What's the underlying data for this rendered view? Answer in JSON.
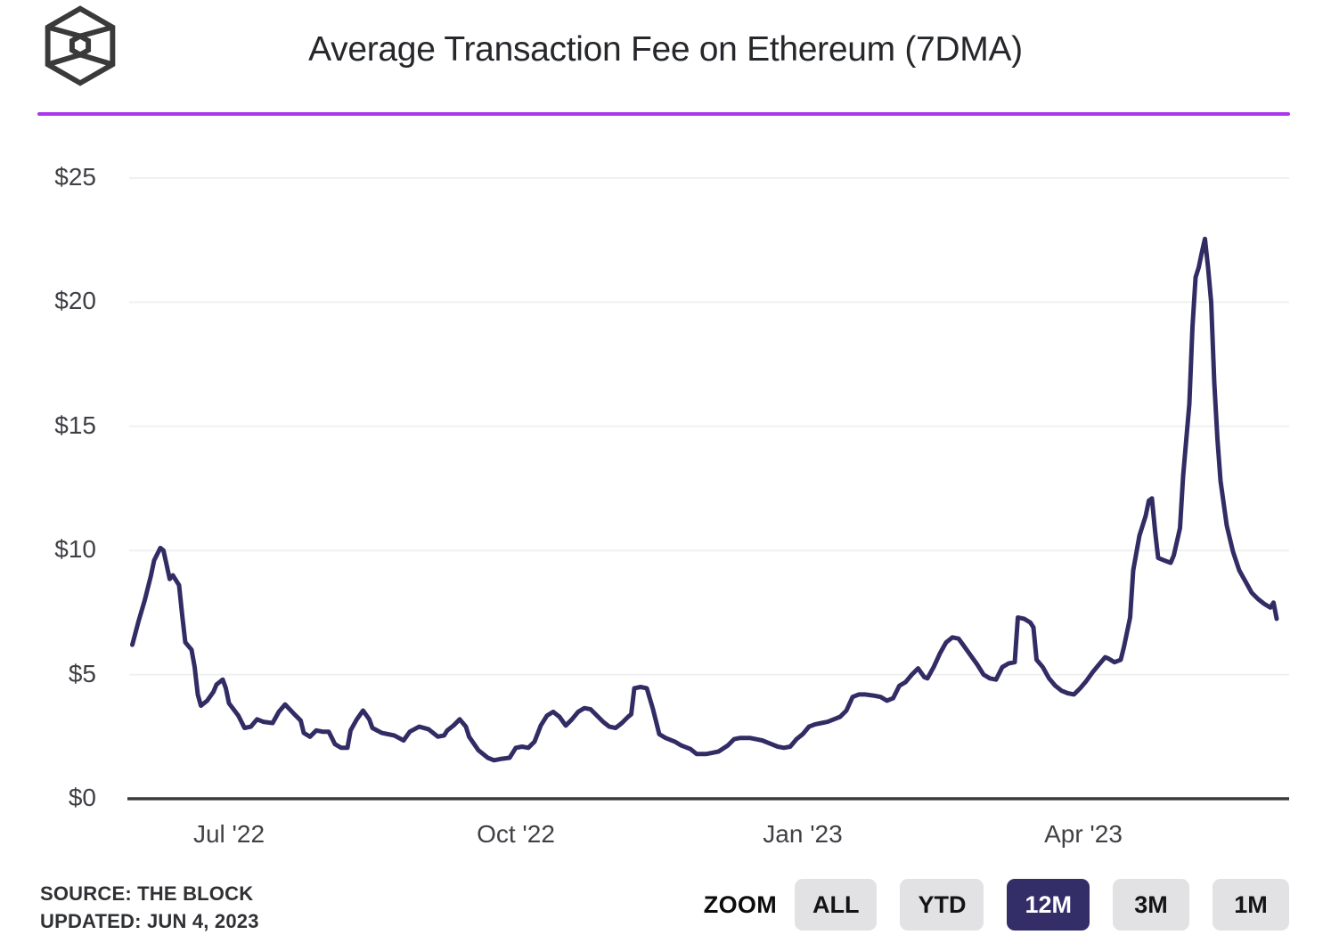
{
  "header": {
    "title": "Average Transaction Fee on Ethereum (7DMA)",
    "logo": "the-block-cube-logo"
  },
  "colors": {
    "divider_purple": "#A838EA",
    "line_indigo": "#322C64",
    "active_button_bg": "#342E68",
    "inactive_button_bg": "#E2E2E4",
    "gridline": "#F0F0F1",
    "zero_axis": "#3A3A3C"
  },
  "footer": {
    "source_line1": "SOURCE: THE BLOCK",
    "source_line2": "UPDATED: JUN 4, 2023",
    "zoom": {
      "label": "ZOOM",
      "buttons": [
        {
          "label": "ALL",
          "active": false
        },
        {
          "label": "YTD",
          "active": false
        },
        {
          "label": "12M",
          "active": true
        },
        {
          "label": "3M",
          "active": false
        },
        {
          "label": "1M",
          "active": false
        }
      ]
    }
  },
  "chart_data": {
    "type": "line",
    "title": "Average Transaction Fee on Ethereum (7DMA)",
    "unit": "USD",
    "ylim": [
      0,
      25
    ],
    "y_tick_values": [
      25,
      20,
      15,
      10,
      5,
      0
    ],
    "y_tick_labels": [
      "$25",
      "$20",
      "$15",
      "$10",
      "$5",
      "$0"
    ],
    "x_range": [
      "2022-05-30",
      "2023-06-06"
    ],
    "x_ticks": [
      {
        "label": "Jul '22",
        "date": "2022-07-01"
      },
      {
        "label": "Oct '22",
        "date": "2022-10-01"
      },
      {
        "label": "Jan '23",
        "date": "2023-01-01"
      },
      {
        "label": "Apr '23",
        "date": "2023-04-01"
      }
    ],
    "grid": true,
    "legend": false,
    "series": [
      {
        "name": "Average transaction fee (7DMA)",
        "color": "#322C64",
        "points": [
          [
            "2022-05-31",
            6.2
          ],
          [
            "2022-06-02",
            7.15
          ],
          [
            "2022-06-04",
            8.0
          ],
          [
            "2022-06-06",
            9.0
          ],
          [
            "2022-06-07",
            9.6
          ],
          [
            "2022-06-09",
            10.1
          ],
          [
            "2022-06-10",
            10.0
          ],
          [
            "2022-06-12",
            8.85
          ],
          [
            "2022-06-13",
            9.0
          ],
          [
            "2022-06-15",
            8.6
          ],
          [
            "2022-06-16",
            7.4
          ],
          [
            "2022-06-17",
            6.3
          ],
          [
            "2022-06-19",
            6.0
          ],
          [
            "2022-06-20",
            5.3
          ],
          [
            "2022-06-21",
            4.2
          ],
          [
            "2022-06-22",
            3.75
          ],
          [
            "2022-06-24",
            3.95
          ],
          [
            "2022-06-26",
            4.3
          ],
          [
            "2022-06-27",
            4.6
          ],
          [
            "2022-06-29",
            4.8
          ],
          [
            "2022-06-30",
            4.45
          ],
          [
            "2022-07-01",
            3.85
          ],
          [
            "2022-07-04",
            3.35
          ],
          [
            "2022-07-06",
            2.85
          ],
          [
            "2022-07-08",
            2.9
          ],
          [
            "2022-07-10",
            3.2
          ],
          [
            "2022-07-12",
            3.1
          ],
          [
            "2022-07-15",
            3.05
          ],
          [
            "2022-07-17",
            3.5
          ],
          [
            "2022-07-19",
            3.8
          ],
          [
            "2022-07-22",
            3.4
          ],
          [
            "2022-07-24",
            3.15
          ],
          [
            "2022-07-25",
            2.65
          ],
          [
            "2022-07-27",
            2.5
          ],
          [
            "2022-07-29",
            2.75
          ],
          [
            "2022-07-31",
            2.7
          ],
          [
            "2022-08-02",
            2.7
          ],
          [
            "2022-08-04",
            2.2
          ],
          [
            "2022-08-06",
            2.05
          ],
          [
            "2022-08-08",
            2.05
          ],
          [
            "2022-08-09",
            2.75
          ],
          [
            "2022-08-11",
            3.2
          ],
          [
            "2022-08-13",
            3.55
          ],
          [
            "2022-08-15",
            3.2
          ],
          [
            "2022-08-16",
            2.85
          ],
          [
            "2022-08-19",
            2.65
          ],
          [
            "2022-08-21",
            2.6
          ],
          [
            "2022-08-23",
            2.55
          ],
          [
            "2022-08-26",
            2.35
          ],
          [
            "2022-08-28",
            2.7
          ],
          [
            "2022-08-31",
            2.9
          ],
          [
            "2022-09-03",
            2.8
          ],
          [
            "2022-09-06",
            2.5
          ],
          [
            "2022-09-08",
            2.55
          ],
          [
            "2022-09-09",
            2.75
          ],
          [
            "2022-09-11",
            2.95
          ],
          [
            "2022-09-13",
            3.2
          ],
          [
            "2022-09-15",
            2.9
          ],
          [
            "2022-09-16",
            2.5
          ],
          [
            "2022-09-19",
            1.95
          ],
          [
            "2022-09-22",
            1.65
          ],
          [
            "2022-09-24",
            1.55
          ],
          [
            "2022-09-26",
            1.6
          ],
          [
            "2022-09-29",
            1.65
          ],
          [
            "2022-10-01",
            2.05
          ],
          [
            "2022-10-03",
            2.1
          ],
          [
            "2022-10-05",
            2.05
          ],
          [
            "2022-10-07",
            2.3
          ],
          [
            "2022-10-09",
            2.95
          ],
          [
            "2022-10-11",
            3.35
          ],
          [
            "2022-10-13",
            3.5
          ],
          [
            "2022-10-15",
            3.3
          ],
          [
            "2022-10-17",
            2.95
          ],
          [
            "2022-10-19",
            3.2
          ],
          [
            "2022-10-21",
            3.5
          ],
          [
            "2022-10-23",
            3.65
          ],
          [
            "2022-10-25",
            3.6
          ],
          [
            "2022-10-27",
            3.35
          ],
          [
            "2022-10-29",
            3.1
          ],
          [
            "2022-10-31",
            2.9
          ],
          [
            "2022-11-02",
            2.85
          ],
          [
            "2022-11-04",
            3.05
          ],
          [
            "2022-11-06",
            3.3
          ],
          [
            "2022-11-07",
            3.4
          ],
          [
            "2022-11-08",
            4.45
          ],
          [
            "2022-11-10",
            4.5
          ],
          [
            "2022-11-12",
            4.45
          ],
          [
            "2022-11-14",
            3.6
          ],
          [
            "2022-11-16",
            2.6
          ],
          [
            "2022-11-18",
            2.45
          ],
          [
            "2022-11-21",
            2.3
          ],
          [
            "2022-11-23",
            2.15
          ],
          [
            "2022-11-26",
            2.0
          ],
          [
            "2022-11-28",
            1.8
          ],
          [
            "2022-12-01",
            1.8
          ],
          [
            "2022-12-03",
            1.85
          ],
          [
            "2022-12-05",
            1.9
          ],
          [
            "2022-12-08",
            2.15
          ],
          [
            "2022-12-10",
            2.4
          ],
          [
            "2022-12-12",
            2.45
          ],
          [
            "2022-12-15",
            2.45
          ],
          [
            "2022-12-17",
            2.4
          ],
          [
            "2022-12-19",
            2.35
          ],
          [
            "2022-12-21",
            2.25
          ],
          [
            "2022-12-24",
            2.1
          ],
          [
            "2022-12-26",
            2.05
          ],
          [
            "2022-12-28",
            2.1
          ],
          [
            "2022-12-30",
            2.4
          ],
          [
            "2023-01-01",
            2.6
          ],
          [
            "2023-01-03",
            2.9
          ],
          [
            "2023-01-05",
            3.0
          ],
          [
            "2023-01-07",
            3.05
          ],
          [
            "2023-01-09",
            3.1
          ],
          [
            "2023-01-11",
            3.2
          ],
          [
            "2023-01-13",
            3.3
          ],
          [
            "2023-01-15",
            3.55
          ],
          [
            "2023-01-17",
            4.1
          ],
          [
            "2023-01-19",
            4.2
          ],
          [
            "2023-01-21",
            4.2
          ],
          [
            "2023-01-24",
            4.15
          ],
          [
            "2023-01-26",
            4.1
          ],
          [
            "2023-01-28",
            3.95
          ],
          [
            "2023-01-30",
            4.05
          ],
          [
            "2023-02-01",
            4.55
          ],
          [
            "2023-02-03",
            4.7
          ],
          [
            "2023-02-05",
            5.0
          ],
          [
            "2023-02-07",
            5.25
          ],
          [
            "2023-02-09",
            4.9
          ],
          [
            "2023-02-10",
            4.85
          ],
          [
            "2023-02-12",
            5.3
          ],
          [
            "2023-02-14",
            5.85
          ],
          [
            "2023-02-16",
            6.3
          ],
          [
            "2023-02-18",
            6.5
          ],
          [
            "2023-02-20",
            6.45
          ],
          [
            "2023-02-22",
            6.1
          ],
          [
            "2023-02-24",
            5.75
          ],
          [
            "2023-02-26",
            5.4
          ],
          [
            "2023-02-28",
            5.0
          ],
          [
            "2023-03-02",
            4.85
          ],
          [
            "2023-03-04",
            4.8
          ],
          [
            "2023-03-06",
            5.3
          ],
          [
            "2023-03-08",
            5.45
          ],
          [
            "2023-03-10",
            5.5
          ],
          [
            "2023-03-11",
            7.3
          ],
          [
            "2023-03-13",
            7.25
          ],
          [
            "2023-03-15",
            7.1
          ],
          [
            "2023-03-16",
            6.9
          ],
          [
            "2023-03-17",
            5.6
          ],
          [
            "2023-03-19",
            5.3
          ],
          [
            "2023-03-21",
            4.85
          ],
          [
            "2023-03-23",
            4.55
          ],
          [
            "2023-03-25",
            4.35
          ],
          [
            "2023-03-27",
            4.25
          ],
          [
            "2023-03-29",
            4.2
          ],
          [
            "2023-03-31",
            4.45
          ],
          [
            "2023-04-02",
            4.75
          ],
          [
            "2023-04-04",
            5.1
          ],
          [
            "2023-04-06",
            5.4
          ],
          [
            "2023-04-08",
            5.7
          ],
          [
            "2023-04-09",
            5.65
          ],
          [
            "2023-04-11",
            5.5
          ],
          [
            "2023-04-13",
            5.6
          ],
          [
            "2023-04-14",
            6.1
          ],
          [
            "2023-04-16",
            7.3
          ],
          [
            "2023-04-17",
            9.2
          ],
          [
            "2023-04-19",
            10.6
          ],
          [
            "2023-04-21",
            11.4
          ],
          [
            "2023-04-22",
            12.0
          ],
          [
            "2023-04-23",
            12.1
          ],
          [
            "2023-04-24",
            10.8
          ],
          [
            "2023-04-25",
            9.7
          ],
          [
            "2023-04-27",
            9.6
          ],
          [
            "2023-04-29",
            9.5
          ],
          [
            "2023-04-30",
            9.8
          ],
          [
            "2023-05-02",
            10.9
          ],
          [
            "2023-05-03",
            13.0
          ],
          [
            "2023-05-05",
            15.9
          ],
          [
            "2023-05-06",
            19.0
          ],
          [
            "2023-05-07",
            21.0
          ],
          [
            "2023-05-08",
            21.4
          ],
          [
            "2023-05-09",
            22.0
          ],
          [
            "2023-05-10",
            22.55
          ],
          [
            "2023-05-11",
            21.4
          ],
          [
            "2023-05-12",
            20.0
          ],
          [
            "2023-05-13",
            16.75
          ],
          [
            "2023-05-14",
            14.5
          ],
          [
            "2023-05-15",
            12.8
          ],
          [
            "2023-05-17",
            11.0
          ],
          [
            "2023-05-19",
            9.95
          ],
          [
            "2023-05-21",
            9.2
          ],
          [
            "2023-05-23",
            8.75
          ],
          [
            "2023-05-25",
            8.3
          ],
          [
            "2023-05-27",
            8.05
          ],
          [
            "2023-05-29",
            7.85
          ],
          [
            "2023-05-31",
            7.7
          ],
          [
            "2023-06-01",
            7.9
          ],
          [
            "2023-06-02",
            7.25
          ]
        ]
      }
    ]
  }
}
